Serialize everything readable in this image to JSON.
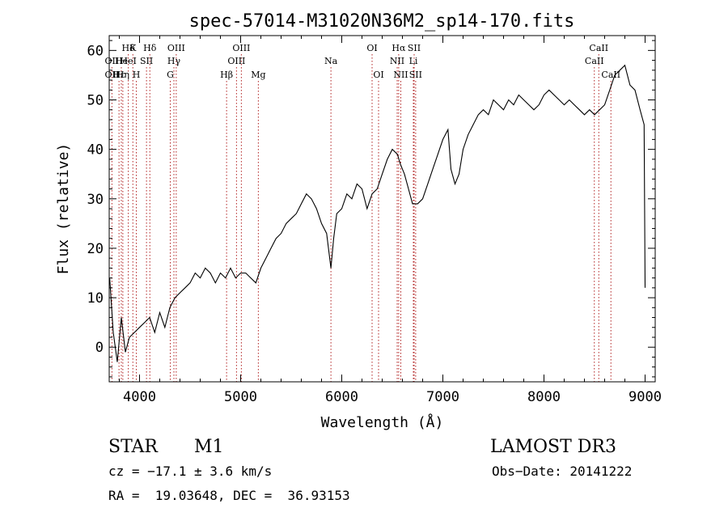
{
  "chart_data": {
    "type": "line",
    "title": "spec-57014-M31020N36M2_sp14-170.fits",
    "xlabel": "Wavelength (Å)",
    "ylabel": "Flux (relative)",
    "xlim": [
      3700,
      9100
    ],
    "ylim": [
      -7,
      63
    ],
    "xticks": [
      4000,
      5000,
      6000,
      7000,
      8000,
      9000
    ],
    "yticks": [
      0,
      10,
      20,
      30,
      40,
      50,
      60
    ],
    "grid": false,
    "line_color": "#000000",
    "marker_color": "#b22222",
    "spectrum": {
      "x": [
        3705,
        3740,
        3780,
        3820,
        3860,
        3900,
        3950,
        4000,
        4050,
        4100,
        4150,
        4200,
        4250,
        4300,
        4350,
        4400,
        4450,
        4500,
        4550,
        4600,
        4650,
        4700,
        4750,
        4800,
        4850,
        4900,
        4950,
        5000,
        5050,
        5100,
        5150,
        5200,
        5250,
        5300,
        5350,
        5400,
        5450,
        5500,
        5550,
        5600,
        5650,
        5700,
        5750,
        5800,
        5850,
        5893,
        5920,
        5950,
        6000,
        6050,
        6100,
        6150,
        6200,
        6250,
        6300,
        6350,
        6400,
        6450,
        6500,
        6550,
        6580,
        6620,
        6660,
        6700,
        6750,
        6800,
        6850,
        6900,
        6950,
        7000,
        7050,
        7080,
        7120,
        7160,
        7200,
        7250,
        7300,
        7350,
        7400,
        7450,
        7500,
        7550,
        7600,
        7650,
        7700,
        7750,
        7800,
        7850,
        7900,
        7950,
        8000,
        8050,
        8100,
        8150,
        8200,
        8250,
        8300,
        8350,
        8400,
        8450,
        8500,
        8550,
        8600,
        8650,
        8700,
        8750,
        8800,
        8850,
        8900,
        8950,
        8990,
        9000
      ],
      "y": [
        14,
        3,
        -3,
        6,
        -1,
        2,
        3,
        4,
        5,
        6,
        3,
        7,
        4,
        8,
        10,
        11,
        12,
        13,
        15,
        14,
        16,
        15,
        13,
        15,
        14,
        16,
        14,
        15,
        15,
        14,
        13,
        16,
        18,
        20,
        22,
        23,
        25,
        26,
        27,
        29,
        31,
        30,
        28,
        25,
        23,
        16,
        22,
        27,
        28,
        31,
        30,
        33,
        32,
        28,
        31,
        32,
        35,
        38,
        40,
        39,
        37,
        35,
        32,
        29,
        29,
        30,
        33,
        36,
        39,
        42,
        44,
        36,
        33,
        35,
        40,
        43,
        45,
        47,
        48,
        47,
        50,
        49,
        48,
        50,
        49,
        51,
        50,
        49,
        48,
        49,
        51,
        52,
        51,
        50,
        49,
        50,
        49,
        48,
        47,
        48,
        47,
        48,
        49,
        52,
        55,
        56,
        57,
        53,
        52,
        48,
        45,
        12
      ]
    },
    "line_markers": {
      "top_row": [
        {
          "label": "Hδ",
          "x": 3889
        },
        {
          "label": "K",
          "x": 3934
        },
        {
          "label": "Hδ",
          "x": 4102
        },
        {
          "label": "OIII",
          "x": 4363
        },
        {
          "label": "OIII",
          "x": 5007
        },
        {
          "label": "OI",
          "x": 6300
        },
        {
          "label": "Hα",
          "x": 6563
        },
        {
          "label": "SII",
          "x": 6716
        },
        {
          "label": "CaII",
          "x": 8542
        }
      ],
      "mid_row": [
        {
          "label": "OII",
          "x": 3727
        },
        {
          "label": "He",
          "x": 3820
        },
        {
          "label": "HeI",
          "x": 3889
        },
        {
          "label": "SII",
          "x": 4069
        },
        {
          "label": "Hγ",
          "x": 4340
        },
        {
          "label": "OIII",
          "x": 4959
        },
        {
          "label": "Na",
          "x": 5893
        },
        {
          "label": "NII",
          "x": 6548
        },
        {
          "label": "Li",
          "x": 6708
        },
        {
          "label": "CaII",
          "x": 8498
        }
      ],
      "bottom_row": [
        {
          "label": "OII",
          "x": 3727
        },
        {
          "label": "Hε",
          "x": 3797
        },
        {
          "label": "Hη",
          "x": 3835
        },
        {
          "label": "H",
          "x": 3968
        },
        {
          "label": "G",
          "x": 4304
        },
        {
          "label": "Hβ",
          "x": 4861
        },
        {
          "label": "Mg",
          "x": 5175
        },
        {
          "label": "OI",
          "x": 6364
        },
        {
          "label": "NII",
          "x": 6584
        },
        {
          "label": "SII",
          "x": 6731
        },
        {
          "label": "CaII",
          "x": 8662
        }
      ]
    }
  },
  "info": {
    "object_class": "STAR",
    "subclass": "M1",
    "survey": "LAMOST DR3",
    "cz": "cz = −17.1 ± 3.6 km/s",
    "obs_date": "Obs−Date: 20141222",
    "coords": "RA =  19.03648, DEC =  36.93153"
  }
}
